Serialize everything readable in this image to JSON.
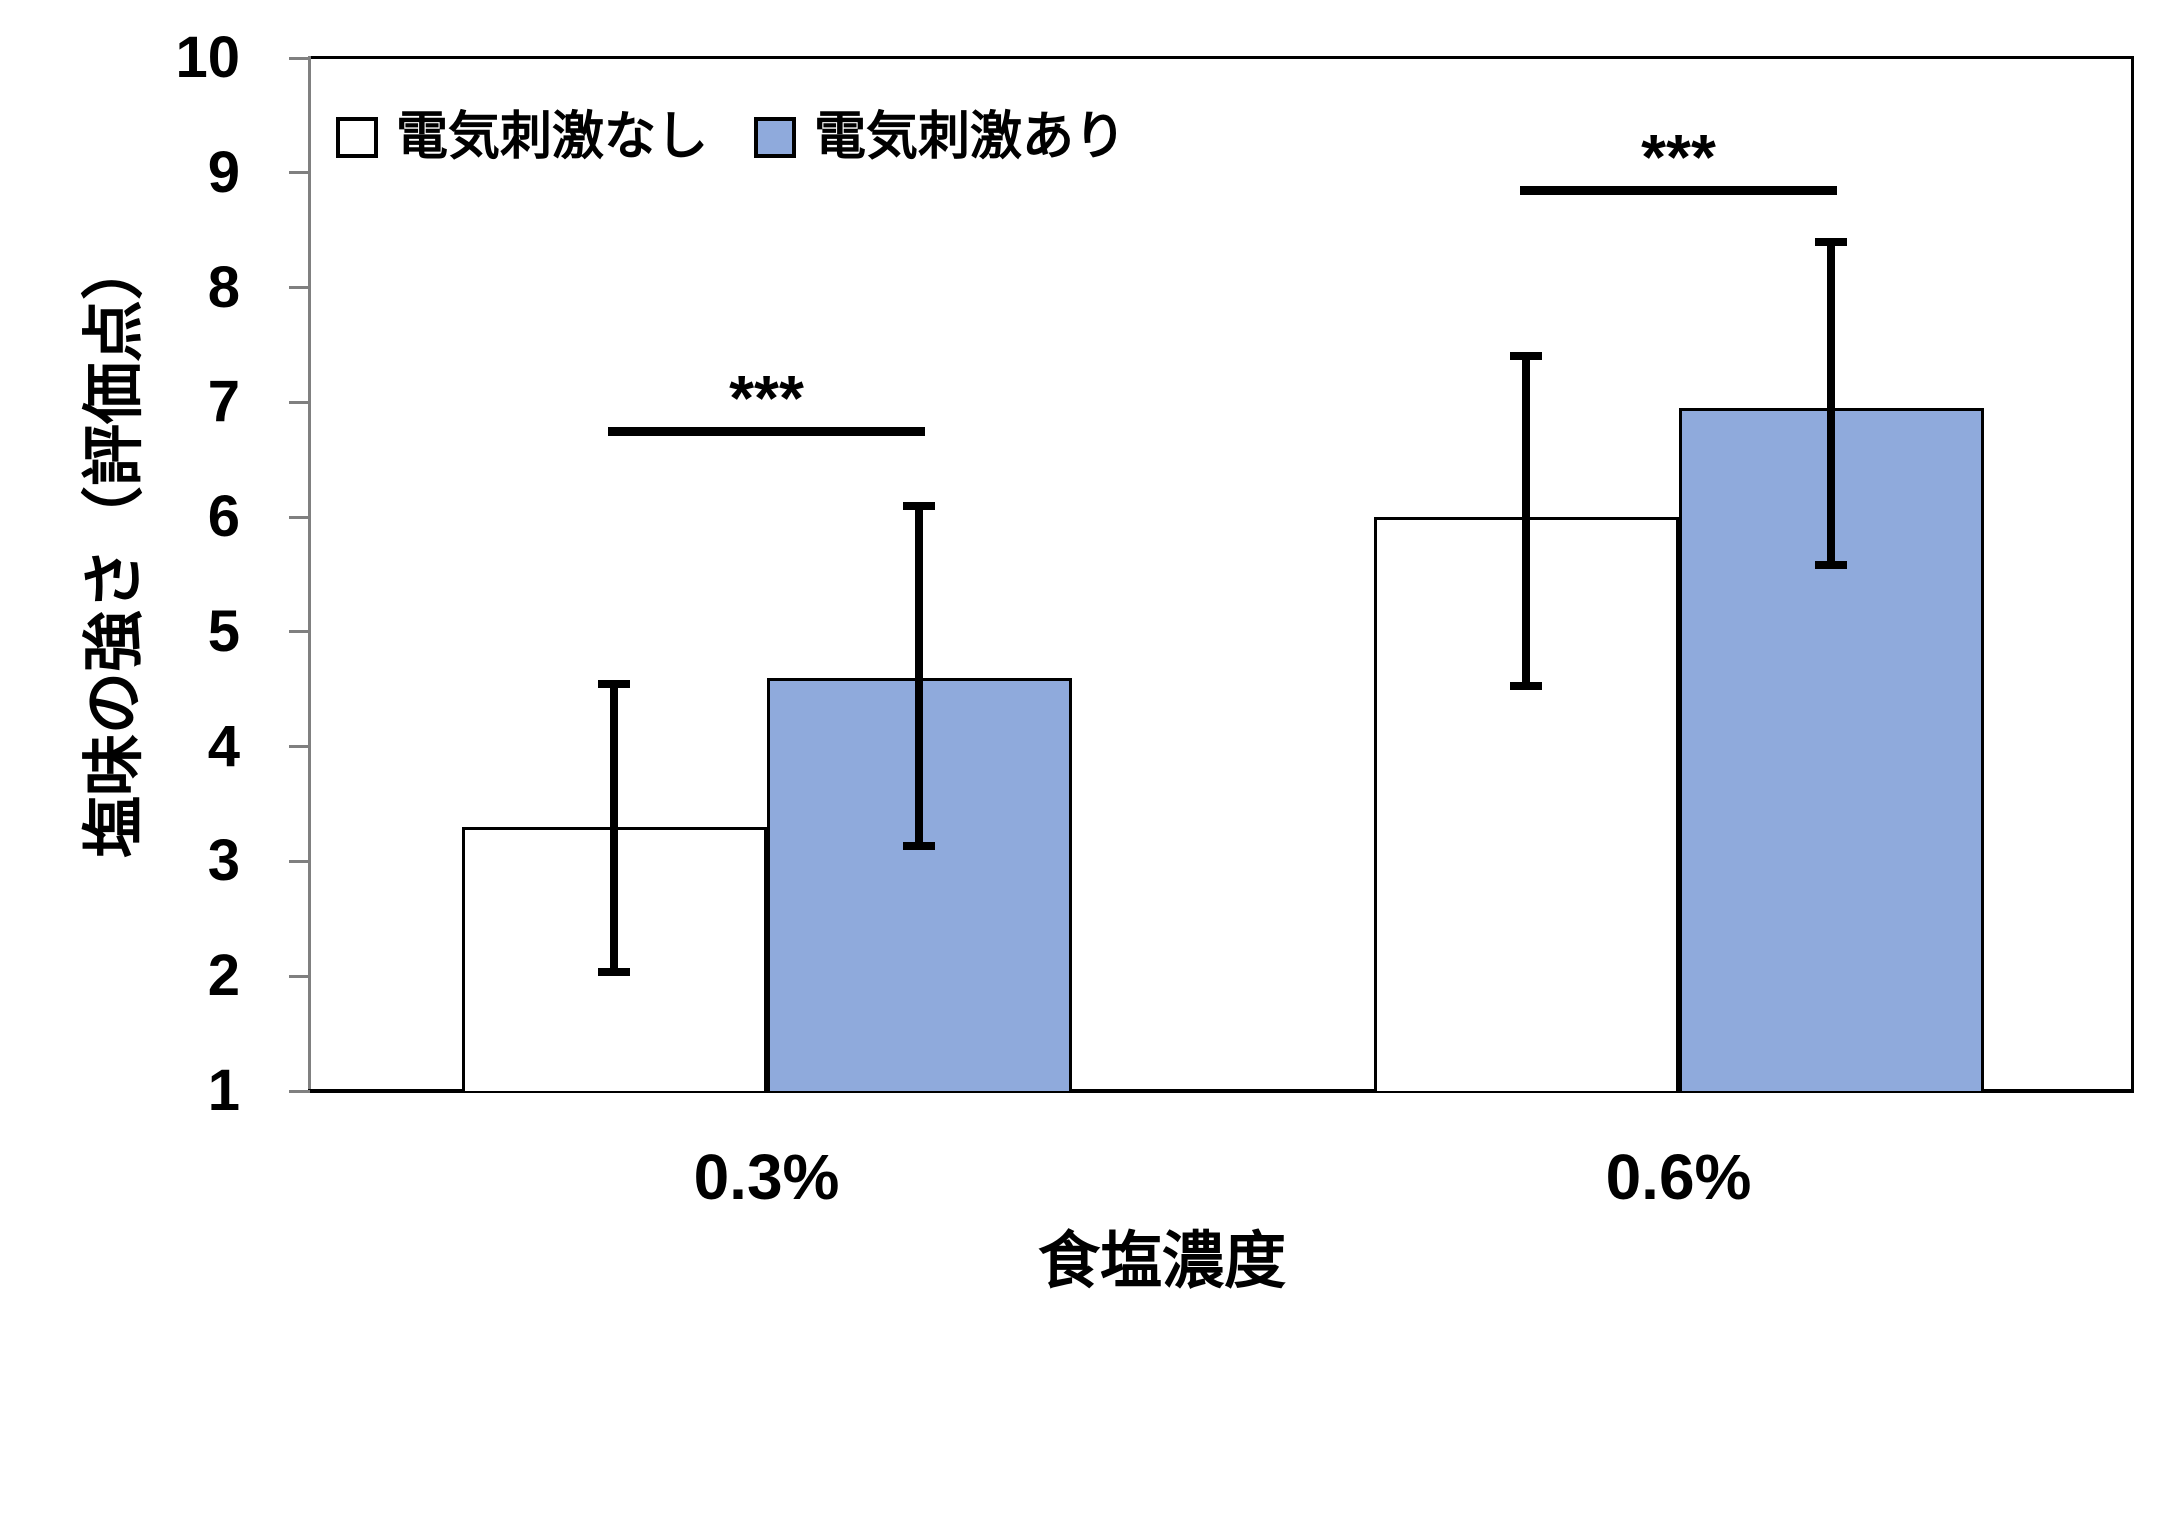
{
  "chart_data": {
    "type": "bar",
    "title": "",
    "categories": [
      "0.3%",
      "0.6%"
    ],
    "series": [
      {
        "name": "電気刺激なし",
        "fill": "#FFFFFF",
        "border": "#000000",
        "values": [
          3.3,
          6.0
        ],
        "error_low": [
          2.05,
          4.55
        ],
        "error_high": [
          4.55,
          7.4
        ]
      },
      {
        "name": "電気刺激あり",
        "fill": "#8FAADC",
        "border": "#000000",
        "values": [
          4.6,
          6.95
        ],
        "error_low": [
          3.15,
          5.6
        ],
        "error_high": [
          6.1,
          8.4
        ]
      }
    ],
    "xlabel": "食塩濃度",
    "ylabel": "塩味の強さ（評価点）",
    "ylim": [
      1,
      10
    ],
    "yticks": [
      1,
      2,
      3,
      4,
      5,
      6,
      7,
      8,
      9,
      10
    ],
    "significance": [
      {
        "category": "0.3%",
        "label": "***",
        "line_y": 6.75
      },
      {
        "category": "0.6%",
        "label": "***",
        "line_y": 8.85
      }
    ],
    "legend_position": "top-left",
    "grid": false,
    "axis_color": "#808080",
    "line_color": "#000000"
  }
}
